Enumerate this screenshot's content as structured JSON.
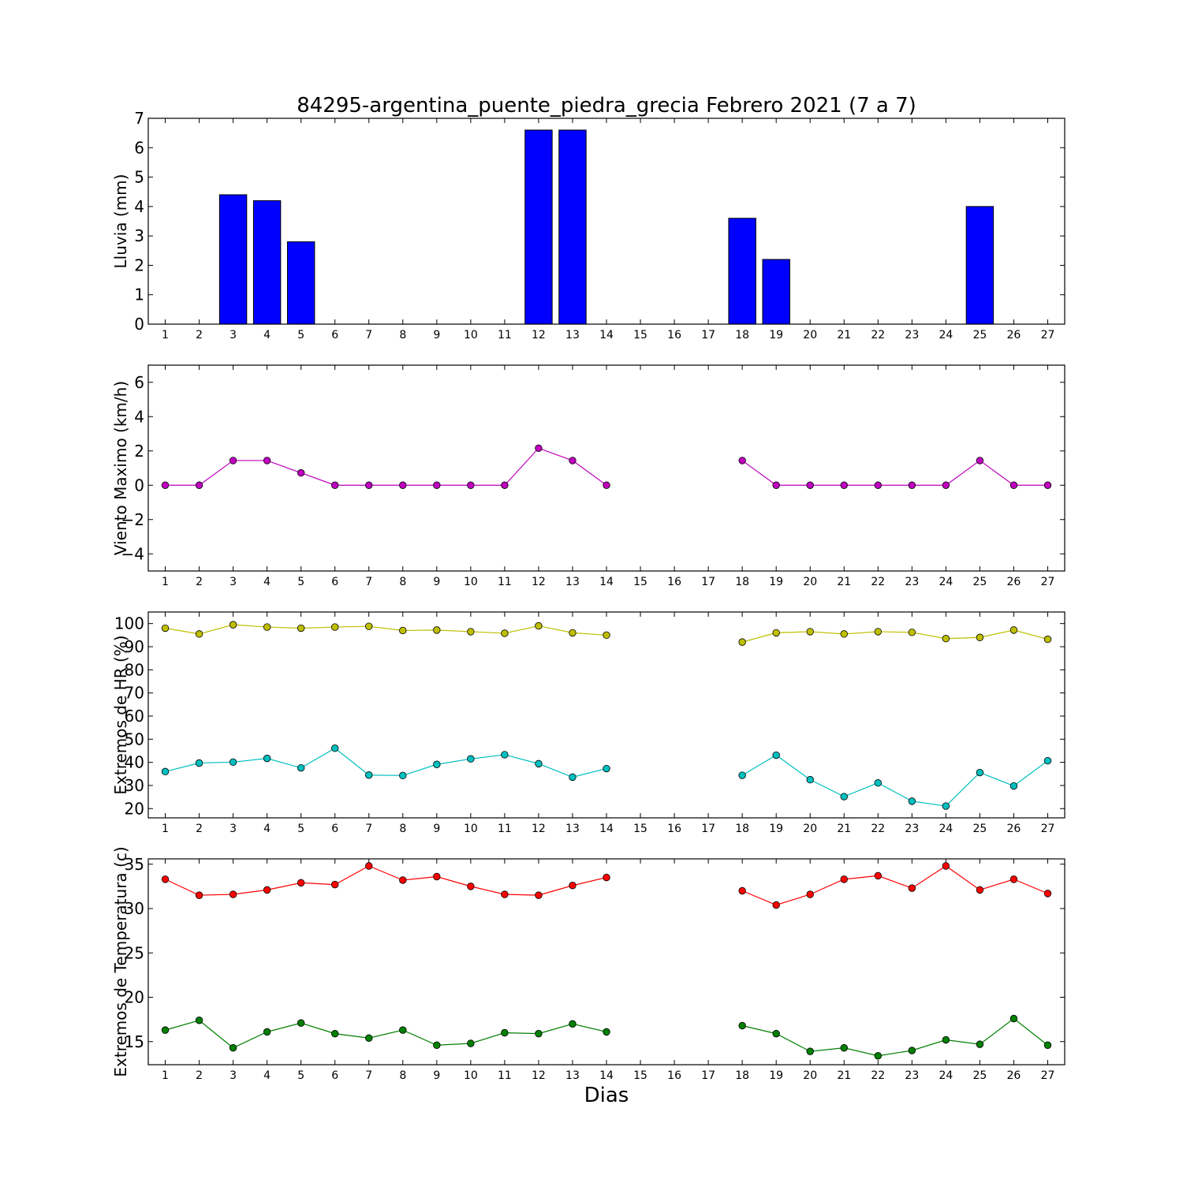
{
  "title": "84295-argentina_puente_piedra_grecia Febrero 2021  (7 a 7)",
  "xlabel": "Dias",
  "chart_data": [
    {
      "type": "bar",
      "id": "lluvia",
      "ylabel": "Lluvia (mm)",
      "xlim": [
        0.5,
        27.5
      ],
      "ylim": [
        0,
        7
      ],
      "yticks": [
        0,
        1,
        2,
        3,
        4,
        5,
        6,
        7
      ],
      "x": [
        1,
        2,
        3,
        4,
        5,
        6,
        7,
        8,
        9,
        10,
        11,
        12,
        13,
        14,
        15,
        16,
        17,
        18,
        19,
        20,
        21,
        22,
        23,
        24,
        25,
        26,
        27
      ],
      "series": [
        {
          "color": "#0000ff",
          "values": [
            0,
            0,
            4.4,
            4.2,
            2.8,
            0,
            0,
            0,
            0,
            0,
            0,
            6.6,
            6.6,
            0,
            0,
            0,
            0,
            3.6,
            2.2,
            0,
            0,
            0,
            0,
            0,
            4.0,
            0,
            0
          ]
        }
      ],
      "grid": false
    },
    {
      "type": "line",
      "id": "viento",
      "ylabel": "Viento Maximo (km/h)",
      "xlim": [
        0.5,
        27.5
      ],
      "ylim": [
        -5,
        7
      ],
      "yticks": [
        -4,
        -2,
        0,
        2,
        4,
        6
      ],
      "ytick_labels": [
        "−4",
        "−2",
        "0",
        "2",
        "4",
        "6"
      ],
      "x": [
        1,
        2,
        3,
        4,
        5,
        6,
        7,
        8,
        9,
        10,
        11,
        12,
        13,
        14,
        15,
        16,
        17,
        18,
        19,
        20,
        21,
        22,
        23,
        24,
        25,
        26,
        27
      ],
      "series": [
        {
          "color": "#bf00bf",
          "values": [
            0,
            0,
            1.44,
            1.44,
            0.72,
            0,
            0,
            0,
            0,
            0,
            0,
            2.16,
            1.44,
            0,
            null,
            null,
            null,
            1.44,
            0,
            0,
            0,
            0,
            0,
            0,
            1.44,
            0,
            0
          ]
        }
      ],
      "grid": false
    },
    {
      "type": "line",
      "id": "hr",
      "ylabel": "Extremos de HR (%)",
      "xlim": [
        0.5,
        27.5
      ],
      "ylim": [
        16,
        105
      ],
      "yticks": [
        20,
        30,
        40,
        50,
        60,
        70,
        80,
        90,
        100
      ],
      "x": [
        1,
        2,
        3,
        4,
        5,
        6,
        7,
        8,
        9,
        10,
        11,
        12,
        13,
        14,
        15,
        16,
        17,
        18,
        19,
        20,
        21,
        22,
        23,
        24,
        25,
        26,
        27
      ],
      "series": [
        {
          "color": "#bfbf00",
          "values": [
            98,
            95.5,
            99.5,
            98.5,
            98,
            98.5,
            98.8,
            97,
            97.2,
            96.5,
            95.8,
            99,
            96,
            95,
            null,
            null,
            null,
            92,
            96,
            96.5,
            95.5,
            96.5,
            96.2,
            93.5,
            94,
            97.2,
            93.2
          ]
        },
        {
          "color": "#00bfbf",
          "values": [
            36,
            39.7,
            40.1,
            41.7,
            37.6,
            46.1,
            34.5,
            34.3,
            39.1,
            41.5,
            43.3,
            39.4,
            33.6,
            37.3,
            null,
            null,
            null,
            34.4,
            43.1,
            32.5,
            25.2,
            31.1,
            23.2,
            21.1,
            35.6,
            29.8,
            40.7
          ]
        }
      ],
      "grid": false
    },
    {
      "type": "line",
      "id": "temperatura",
      "ylabel": "Extremos de Temperatura (c)",
      "xlim": [
        0.5,
        27.5
      ],
      "ylim": [
        12.4,
        35.6
      ],
      "yticks": [
        15,
        20,
        25,
        30,
        35
      ],
      "x": [
        1,
        2,
        3,
        4,
        5,
        6,
        7,
        8,
        9,
        10,
        11,
        12,
        13,
        14,
        15,
        16,
        17,
        18,
        19,
        20,
        21,
        22,
        23,
        24,
        25,
        26,
        27
      ],
      "series": [
        {
          "color": "#ff0000",
          "values": [
            33.3,
            31.5,
            31.6,
            32.1,
            32.9,
            32.7,
            34.8,
            33.2,
            33.6,
            32.5,
            31.6,
            31.5,
            32.6,
            33.5,
            null,
            null,
            null,
            32.0,
            30.4,
            31.6,
            33.3,
            33.7,
            32.3,
            34.8,
            32.1,
            33.3,
            31.7
          ]
        },
        {
          "color": "#008000",
          "values": [
            16.3,
            17.4,
            14.3,
            16.1,
            17.1,
            15.9,
            15.4,
            16.3,
            14.6,
            14.8,
            16.0,
            15.9,
            17.0,
            16.1,
            null,
            null,
            null,
            16.8,
            15.9,
            13.9,
            14.3,
            13.4,
            14.0,
            15.2,
            14.7,
            17.6,
            14.6
          ]
        }
      ],
      "grid": false
    }
  ]
}
